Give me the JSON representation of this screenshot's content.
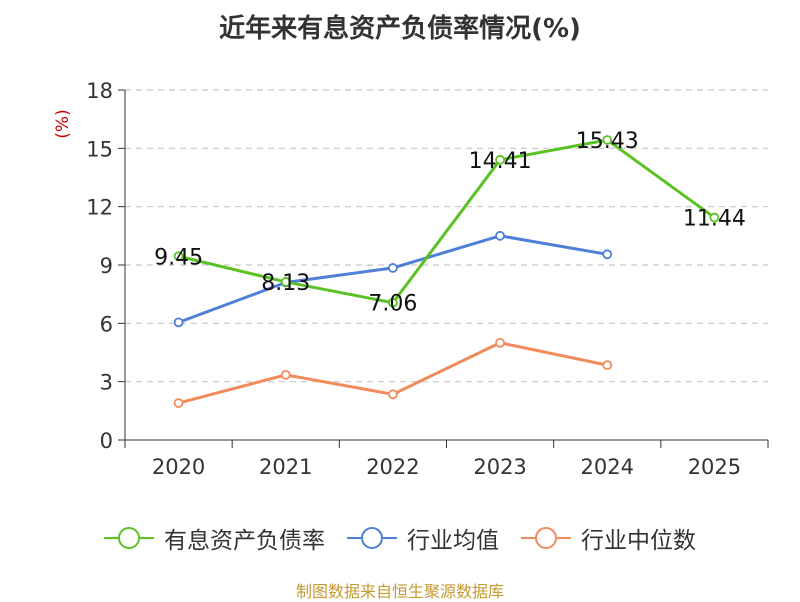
{
  "title": "近年来有息资产负债率情况(%)",
  "source": "制图数据来自恒生聚源数据库",
  "chart_data": {
    "type": "line",
    "ylabel": "(%)",
    "xlabel": "",
    "categories": [
      "2020",
      "2021",
      "2022",
      "2023",
      "2024",
      "2025"
    ],
    "yticks": [
      "0",
      "3",
      "6",
      "9",
      "12",
      "15",
      "18"
    ],
    "ylim": [
      0,
      18
    ],
    "grid": true,
    "legend_position": "bottom",
    "series": [
      {
        "name": "有息资产负债率",
        "color": "#5bc225",
        "values": [
          9.45,
          8.13,
          7.06,
          14.41,
          15.43,
          11.44
        ],
        "labels": [
          "9.45",
          "8.13",
          "7.06",
          "14.41",
          "15.43",
          "11.44"
        ]
      },
      {
        "name": "行业均值",
        "color": "#4f7fd6",
        "values": [
          6.05,
          8.1,
          8.85,
          10.5,
          9.55,
          null
        ]
      },
      {
        "name": "行业中位数",
        "color": "#f28b5b",
        "values": [
          1.9,
          3.35,
          2.35,
          5.0,
          3.85,
          null
        ]
      }
    ]
  }
}
